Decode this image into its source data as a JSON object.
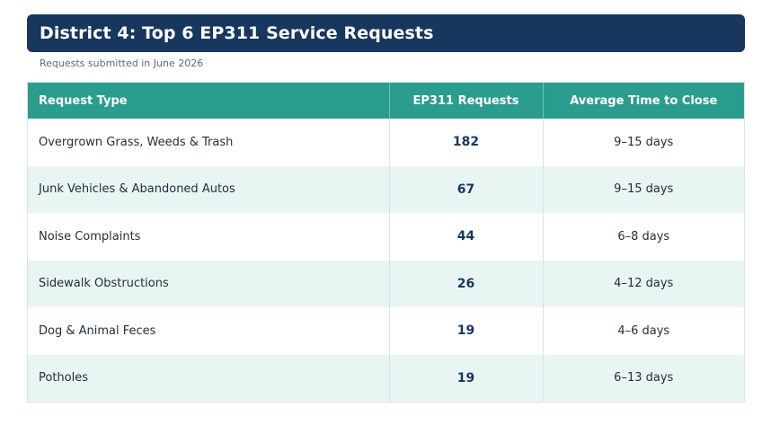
{
  "header": {
    "title": "District 4: Top 6 EP311 Service Requests",
    "subtitle": "Requests submitted in June 2026"
  },
  "table": {
    "columns": [
      "Request Type",
      "EP311 Requests",
      "Average Time to Close"
    ],
    "rows": [
      {
        "type": "Overgrown Grass, Weeds & Trash",
        "requests": "182",
        "time": "9–15 days"
      },
      {
        "type": "Junk Vehicles & Abandoned Autos",
        "requests": "67",
        "time": "9–15 days"
      },
      {
        "type": "Noise Complaints",
        "requests": "44",
        "time": "6–8 days"
      },
      {
        "type": "Sidewalk Obstructions",
        "requests": "26",
        "time": "4–12 days"
      },
      {
        "type": "Dog & Animal Feces",
        "requests": "19",
        "time": "4–6 days"
      },
      {
        "type": "Potholes",
        "requests": "19",
        "time": "6–13 days"
      }
    ]
  },
  "colors": {
    "header_bg": "#17375e",
    "table_header_bg": "#2a9d8f",
    "stripe": "#e9f5f3"
  }
}
